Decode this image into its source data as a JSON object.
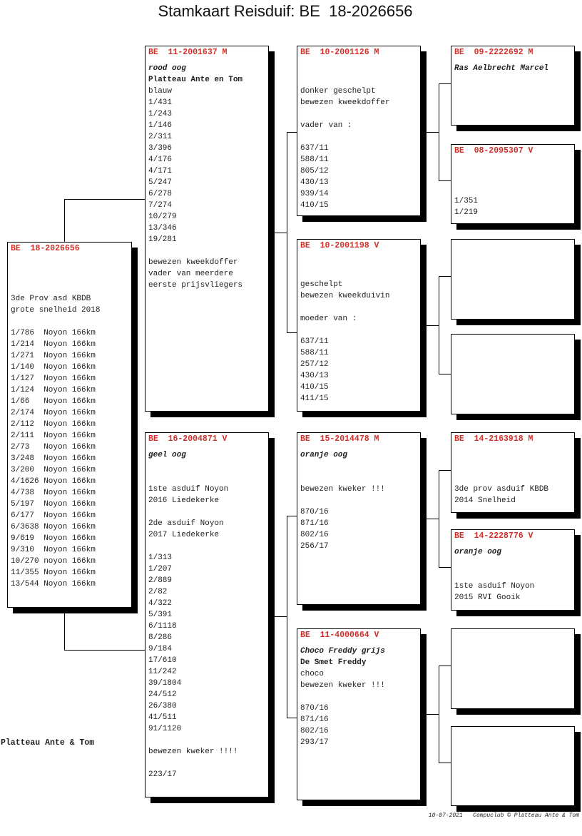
{
  "title": "Stamkaart Reisduif: BE  18-2026656",
  "breeder": "Platteau Ante & Tom",
  "footer": "10-07-2021   Compuclub © Platteau Ante & Tom",
  "colors": {
    "ring": "#d0302a",
    "shadow": "#000000"
  },
  "birds": {
    "subject": {
      "ring": "BE  18-2026656",
      "lines": [
        {
          "text": ""
        },
        {
          "text": ""
        },
        {
          "text": ""
        },
        {
          "text": "3de Prov asd KBDB"
        },
        {
          "text": "grote snelheid 2018"
        },
        {
          "text": ""
        },
        {
          "text": "1/786  Noyon 166km"
        },
        {
          "text": "1/214  Noyon 166km"
        },
        {
          "text": "1/271  Noyon 166km"
        },
        {
          "text": "1/140  Noyon 166km"
        },
        {
          "text": "1/127  Noyon 166km"
        },
        {
          "text": "1/124  Noyon 166km"
        },
        {
          "text": "1/66   Noyon 166km"
        },
        {
          "text": "2/174  Noyon 166km"
        },
        {
          "text": "2/112  Noyon 166km"
        },
        {
          "text": "2/111  Noyon 166km"
        },
        {
          "text": "2/73   Noyon 166km"
        },
        {
          "text": "3/248  Noyon 166km"
        },
        {
          "text": "3/200  Noyon 166km"
        },
        {
          "text": "4/1626 Noyon 166km"
        },
        {
          "text": "4/738  Noyon 166km"
        },
        {
          "text": "5/197  Noyon 166km"
        },
        {
          "text": "6/177  Noyon 166km"
        },
        {
          "text": "6/3638 Noyon 166km"
        },
        {
          "text": "9/619  Noyon 166km"
        },
        {
          "text": "9/310  Noyon 166km"
        },
        {
          "text": "10/270 noyon 166km"
        },
        {
          "text": "11/355 Noyon 166km"
        },
        {
          "text": "13/544 Noyon 166km"
        }
      ]
    },
    "sire": {
      "ring": "BE  11-2001637 M",
      "lines": [
        {
          "text": "rood oog",
          "style": "italic"
        },
        {
          "text": "Platteau Ante en Tom",
          "style": "bold"
        },
        {
          "text": "blauw"
        },
        {
          "text": "1/431"
        },
        {
          "text": "1/243"
        },
        {
          "text": "1/146"
        },
        {
          "text": "2/311"
        },
        {
          "text": "3/396"
        },
        {
          "text": "4/176"
        },
        {
          "text": "4/171"
        },
        {
          "text": "5/247"
        },
        {
          "text": "6/278"
        },
        {
          "text": "7/274"
        },
        {
          "text": "10/279"
        },
        {
          "text": "13/346"
        },
        {
          "text": "19/281"
        },
        {
          "text": ""
        },
        {
          "text": "bewezen kweekdoffer"
        },
        {
          "text": "vader van meerdere"
        },
        {
          "text": "eerste prijsvliegers"
        }
      ]
    },
    "dam": {
      "ring": "BE  16-2004871 V",
      "lines": [
        {
          "text": "geel oog",
          "style": "italic"
        },
        {
          "text": ""
        },
        {
          "text": ""
        },
        {
          "text": "1ste asduif Noyon"
        },
        {
          "text": "2016 Liedekerke"
        },
        {
          "text": ""
        },
        {
          "text": "2de asduif Noyon"
        },
        {
          "text": "2017 Liedekerke"
        },
        {
          "text": ""
        },
        {
          "text": "1/313"
        },
        {
          "text": "1/207"
        },
        {
          "text": "2/889"
        },
        {
          "text": "2/82"
        },
        {
          "text": "4/322"
        },
        {
          "text": "5/391"
        },
        {
          "text": "6/1118"
        },
        {
          "text": "8/286"
        },
        {
          "text": "9/184"
        },
        {
          "text": "17/610"
        },
        {
          "text": "11/242"
        },
        {
          "text": "39/1804"
        },
        {
          "text": "24/512"
        },
        {
          "text": "26/380"
        },
        {
          "text": "41/511"
        },
        {
          "text": "91/1120"
        },
        {
          "text": ""
        },
        {
          "text": "bewezen kweker !!!!"
        },
        {
          "text": ""
        },
        {
          "text": "223/17"
        }
      ]
    },
    "sire_sire": {
      "ring": "BE  10-2001126 M",
      "lines": [
        {
          "text": ""
        },
        {
          "text": ""
        },
        {
          "text": "donker geschelpt"
        },
        {
          "text": "bewezen kweekdoffer"
        },
        {
          "text": ""
        },
        {
          "text": "vader van :"
        },
        {
          "text": ""
        },
        {
          "text": "637/11"
        },
        {
          "text": "588/11"
        },
        {
          "text": "805/12"
        },
        {
          "text": "430/13"
        },
        {
          "text": "939/14"
        },
        {
          "text": "410/15"
        }
      ]
    },
    "sire_dam": {
      "ring": "BE  10-2001198 V",
      "lines": [
        {
          "text": ""
        },
        {
          "text": ""
        },
        {
          "text": "geschelpt"
        },
        {
          "text": "bewezen kweekduivin"
        },
        {
          "text": ""
        },
        {
          "text": "moeder van :"
        },
        {
          "text": ""
        },
        {
          "text": "637/11"
        },
        {
          "text": "588/11"
        },
        {
          "text": "257/12"
        },
        {
          "text": "430/13"
        },
        {
          "text": "410/15"
        },
        {
          "text": "411/15"
        }
      ]
    },
    "dam_sire": {
      "ring": "BE  15-2014478 M",
      "lines": [
        {
          "text": "oranje oog",
          "style": "italic"
        },
        {
          "text": ""
        },
        {
          "text": ""
        },
        {
          "text": "bewezen kweker !!!"
        },
        {
          "text": ""
        },
        {
          "text": "870/16"
        },
        {
          "text": "871/16"
        },
        {
          "text": "802/16"
        },
        {
          "text": "256/17"
        }
      ]
    },
    "dam_dam": {
      "ring": "BE  11-4000664 V",
      "lines": [
        {
          "text": "Choco Freddy grijs",
          "style": "italic"
        },
        {
          "text": "De Smet Freddy",
          "style": "bold"
        },
        {
          "text": "choco"
        },
        {
          "text": "bewezen kweker !!!"
        },
        {
          "text": ""
        },
        {
          "text": "870/16"
        },
        {
          "text": "871/16"
        },
        {
          "text": "802/16"
        },
        {
          "text": "293/17"
        }
      ]
    },
    "ss_sire": {
      "ring": "BE  09-2222692 M",
      "lines": [
        {
          "text": "Ras Aelbrecht Marcel",
          "style": "italic"
        }
      ]
    },
    "ss_dam": {
      "ring": "BE  08-2095307 V",
      "lines": [
        {
          "text": ""
        },
        {
          "text": ""
        },
        {
          "text": ""
        },
        {
          "text": "1/351"
        },
        {
          "text": "1/219"
        }
      ]
    },
    "sd_sire": {
      "ring": "",
      "lines": []
    },
    "sd_dam": {
      "ring": "",
      "lines": []
    },
    "ds_sire": {
      "ring": "BE  14-2163918 M",
      "lines": [
        {
          "text": ""
        },
        {
          "text": ""
        },
        {
          "text": ""
        },
        {
          "text": "3de prov asduif KBDB"
        },
        {
          "text": "2014 Snelheid"
        }
      ]
    },
    "ds_dam": {
      "ring": "BE  14-2228776 V",
      "lines": [
        {
          "text": "oranje oog",
          "style": "italic"
        },
        {
          "text": ""
        },
        {
          "text": ""
        },
        {
          "text": "1ste asduif Noyon"
        },
        {
          "text": "2015 RVI Gooik"
        }
      ]
    },
    "dd_sire": {
      "ring": "",
      "lines": []
    },
    "dd_dam": {
      "ring": "",
      "lines": []
    }
  }
}
